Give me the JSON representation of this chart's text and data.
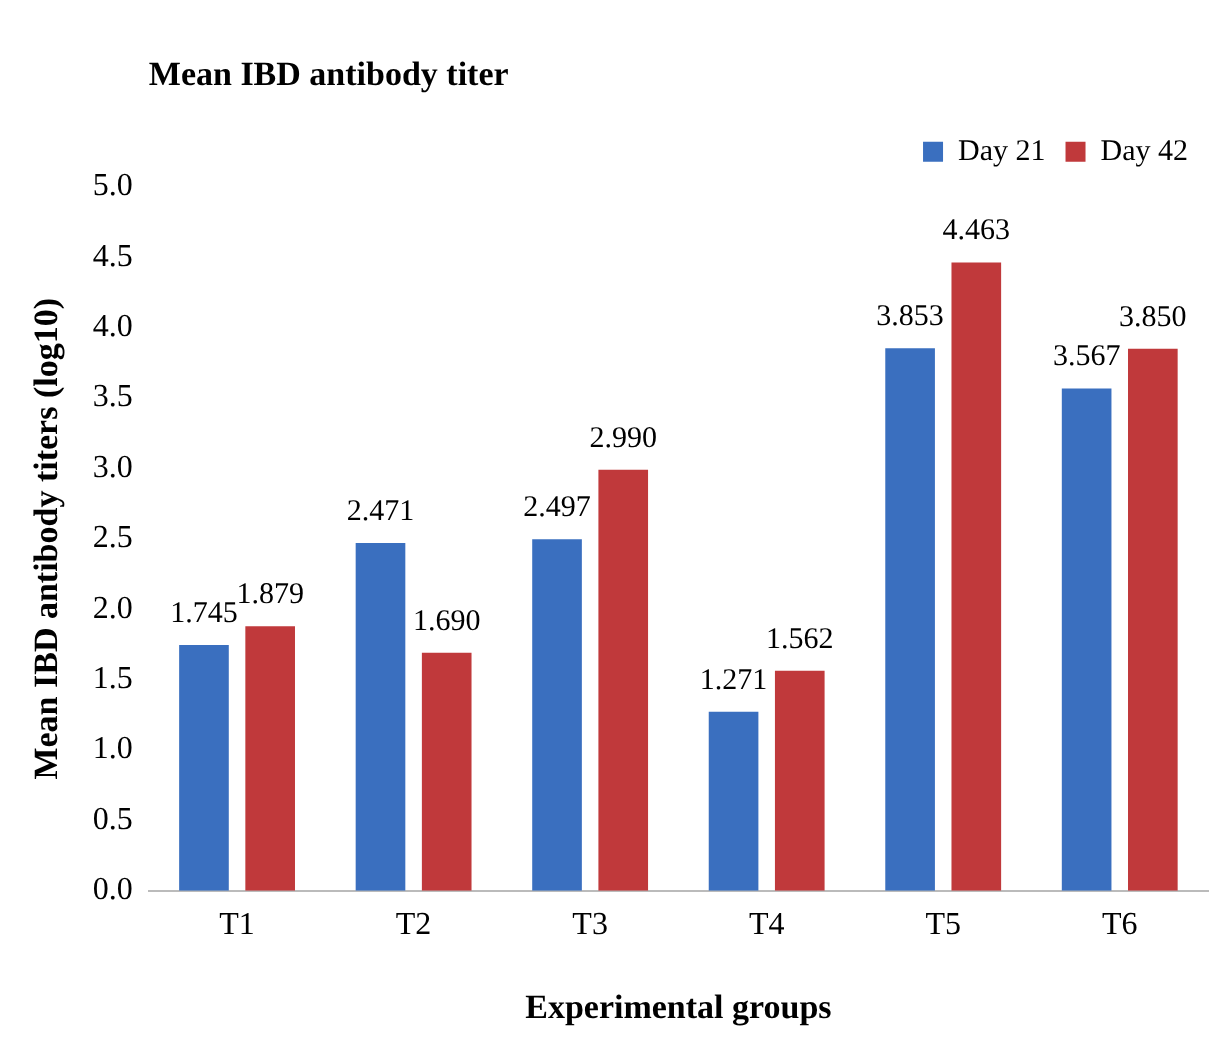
{
  "chart_data": {
    "type": "bar",
    "title": "Mean IBD antibody titer",
    "xlabel": "Experimental groups",
    "ylabel": "Mean IBD antibody titers (log10)",
    "categories": [
      "T1",
      "T2",
      "T3",
      "T4",
      "T5",
      "T6"
    ],
    "series": [
      {
        "name": "Day 21",
        "color": "#3a6fbf",
        "values": [
          1.745,
          2.471,
          2.497,
          1.271,
          3.853,
          3.567
        ],
        "value_labels": [
          "1.745",
          "2.471",
          "2.497",
          "1.271",
          "3.853",
          "3.567"
        ]
      },
      {
        "name": "Day 42",
        "color": "#c0393b",
        "values": [
          1.879,
          1.69,
          2.99,
          1.562,
          4.463,
          3.85
        ],
        "value_labels": [
          "1.879",
          "1.690",
          "2.990",
          "1.562",
          "4.463",
          "3.850"
        ]
      }
    ],
    "ylim": [
      0,
      5
    ],
    "yticks": [
      {
        "value": 0,
        "label": "0.0"
      },
      {
        "value": 0.5,
        "label": "0.5"
      },
      {
        "value": 1,
        "label": "1.0"
      },
      {
        "value": 1.5,
        "label": "1.5"
      },
      {
        "value": 2,
        "label": "2.0"
      },
      {
        "value": 2.5,
        "label": "2.5"
      },
      {
        "value": 3,
        "label": "3.0"
      },
      {
        "value": 3.5,
        "label": "3.5"
      },
      {
        "value": 4,
        "label": "4.0"
      },
      {
        "value": 4.5,
        "label": "4.5"
      },
      {
        "value": 5,
        "label": "5.0"
      }
    ],
    "grid": false,
    "legend": "top right"
  }
}
